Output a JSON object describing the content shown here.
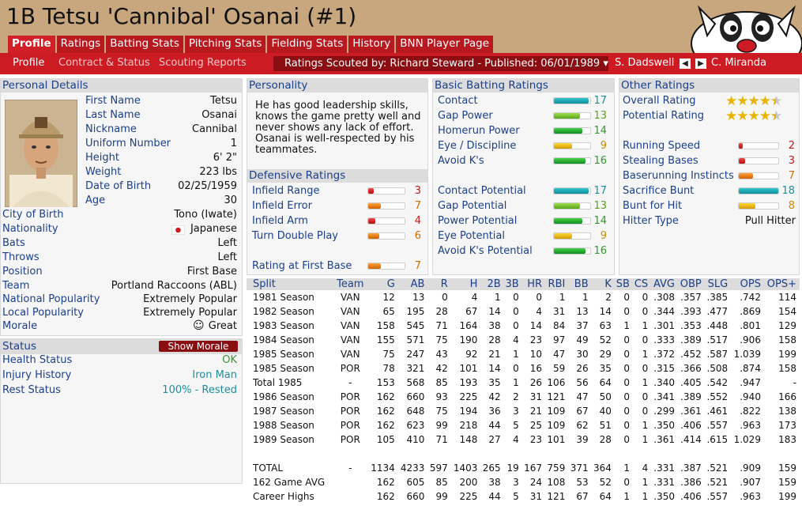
{
  "page_title": "1B Tetsu 'Cannibal' Osanai (#1)",
  "tabs": [
    {
      "label": "Profile",
      "active": true
    },
    {
      "label": "Ratings"
    },
    {
      "label": "Batting Stats"
    },
    {
      "label": "Pitching Stats"
    },
    {
      "label": "Fielding Stats"
    },
    {
      "label": "History"
    },
    {
      "label": "BNN Player Page"
    }
  ],
  "subtabs": [
    {
      "label": "Profile",
      "active": true
    },
    {
      "label": "Contract & Status"
    },
    {
      "label": "Scouting Reports"
    }
  ],
  "scout_selector": "Ratings Scouted by: Richard Steward - Published: 06/01/1989 ▾",
  "nav_prev": "S. Dadswell",
  "nav_next": "C. Miranda",
  "personal": {
    "header": "Personal Details",
    "first_name_label": "First Name",
    "first_name": "Tetsu",
    "last_name_label": "Last Name",
    "last_name": "Osanai",
    "nickname_label": "Nickname",
    "nickname": "Cannibal",
    "uniform_label": "Uniform Number",
    "uniform": "1",
    "height_label": "Height",
    "height": "6' 2\"",
    "weight_label": "Weight",
    "weight": "223 lbs",
    "dob_label": "Date of Birth",
    "dob": "02/25/1959",
    "age_label": "Age",
    "age": "30",
    "city_label": "City of Birth",
    "city": "Tono (Iwate)",
    "nationality_label": "Nationality",
    "nationality": "Japanese",
    "bats_label": "Bats",
    "bats": "Left",
    "throws_label": "Throws",
    "throws": "Left",
    "position_label": "Position",
    "position": "First Base",
    "team_label": "Team",
    "team": "Portland Raccoons (ABL)",
    "natpop_label": "National Popularity",
    "natpop": "Extremely Popular",
    "locpop_label": "Local Popularity",
    "locpop": "Extremely Popular",
    "morale_label": "Morale",
    "morale": "Great"
  },
  "status": {
    "header": "Status",
    "show_morale": "Show Morale",
    "health_label": "Health Status",
    "health": "OK",
    "injury_label": "Injury History",
    "injury": "Iron Man",
    "rest_label": "Rest Status",
    "rest": "100% - Rested"
  },
  "personality": {
    "header": "Personality",
    "text": "He has good leadership skills, knows the game pretty well and never shows any lack of effort. Osanai is well-respected by his teammates."
  },
  "defensive": {
    "header": "Defensive Ratings",
    "items": [
      {
        "label": "Infield Range",
        "value": "3",
        "level": 0.15,
        "color": "red"
      },
      {
        "label": "Infield Error",
        "value": "7",
        "level": 0.35,
        "color": "orange"
      },
      {
        "label": "Infield Arm",
        "value": "4",
        "level": 0.2,
        "color": "red"
      },
      {
        "label": "Turn Double Play",
        "value": "6",
        "level": 0.3,
        "color": "orange"
      }
    ],
    "first_base": {
      "label": "Rating at First Base",
      "value": "7",
      "level": 0.35,
      "color": "orange"
    }
  },
  "batting": {
    "header": "Basic Batting Ratings",
    "items": [
      {
        "label": "Contact",
        "value": "17",
        "level": 0.95,
        "color": "teal"
      },
      {
        "label": "Gap Power",
        "value": "13",
        "level": 0.72,
        "color": "lgreen"
      },
      {
        "label": "Homerun Power",
        "value": "14",
        "level": 0.78,
        "color": "green"
      },
      {
        "label": "Eye / Discipline",
        "value": "9",
        "level": 0.5,
        "color": "yellow"
      },
      {
        "label": "Avoid K's",
        "value": "16",
        "level": 0.88,
        "color": "green"
      }
    ],
    "potential": [
      {
        "label": "Contact Potential",
        "value": "17",
        "level": 0.95,
        "color": "teal"
      },
      {
        "label": "Gap Potential",
        "value": "13",
        "level": 0.72,
        "color": "lgreen"
      },
      {
        "label": "Power Potential",
        "value": "14",
        "level": 0.78,
        "color": "green"
      },
      {
        "label": "Eye Potential",
        "value": "9",
        "level": 0.5,
        "color": "yellow"
      },
      {
        "label": "Avoid K's Potential",
        "value": "16",
        "level": 0.88,
        "color": "green"
      }
    ]
  },
  "other": {
    "header": "Other Ratings",
    "overall_label": "Overall Rating",
    "overall_stars": 4.5,
    "potential_label": "Potential Rating",
    "potential_stars": 4.5,
    "items": [
      {
        "label": "Running Speed",
        "value": "2",
        "level": 0.1,
        "color": "red"
      },
      {
        "label": "Stealing Bases",
        "value": "3",
        "level": 0.15,
        "color": "red"
      },
      {
        "label": "Baserunning Instincts",
        "value": "7",
        "level": 0.35,
        "color": "orange"
      },
      {
        "label": "Sacrifice Bunt",
        "value": "18",
        "level": 1.0,
        "color": "teal"
      },
      {
        "label": "Bunt for Hit",
        "value": "8",
        "level": 0.42,
        "color": "yellow"
      }
    ],
    "hitter_label": "Hitter Type",
    "hitter": "Pull Hitter"
  },
  "stats": {
    "columns": [
      "Split",
      "Team",
      "G",
      "AB",
      "R",
      "H",
      "2B",
      "3B",
      "HR",
      "RBI",
      "BB",
      "K",
      "SB",
      "CS",
      "AVG",
      "OBP",
      "SLG",
      "OPS",
      "OPS+"
    ],
    "rows": [
      [
        "1981 Season",
        "VAN",
        "12",
        "13",
        "0",
        "4",
        "1",
        "0",
        "0",
        "1",
        "1",
        "2",
        "0",
        "0",
        ".308",
        ".357",
        ".385",
        ".742",
        "114"
      ],
      [
        "1982 Season",
        "VAN",
        "65",
        "195",
        "28",
        "67",
        "14",
        "0",
        "4",
        "31",
        "13",
        "14",
        "0",
        "0",
        ".344",
        ".393",
        ".477",
        ".869",
        "154"
      ],
      [
        "1983 Season",
        "VAN",
        "158",
        "545",
        "71",
        "164",
        "38",
        "0",
        "14",
        "84",
        "37",
        "63",
        "1",
        "1",
        ".301",
        ".353",
        ".448",
        ".801",
        "129"
      ],
      [
        "1984 Season",
        "VAN",
        "155",
        "571",
        "75",
        "190",
        "28",
        "4",
        "23",
        "97",
        "49",
        "52",
        "0",
        "0",
        ".333",
        ".389",
        ".517",
        ".906",
        "158"
      ],
      [
        "1985 Season",
        "VAN",
        "75",
        "247",
        "43",
        "92",
        "21",
        "1",
        "10",
        "47",
        "30",
        "29",
        "0",
        "1",
        ".372",
        ".452",
        ".587",
        "1.039",
        "199"
      ],
      [
        "1985 Season",
        "POR",
        "78",
        "321",
        "42",
        "101",
        "14",
        "0",
        "16",
        "59",
        "26",
        "35",
        "0",
        "0",
        ".315",
        ".366",
        ".508",
        ".874",
        "158"
      ],
      [
        "Total 1985",
        "-",
        "153",
        "568",
        "85",
        "193",
        "35",
        "1",
        "26",
        "106",
        "56",
        "64",
        "0",
        "1",
        ".340",
        ".405",
        ".542",
        ".947",
        "-"
      ],
      [
        "1986 Season",
        "POR",
        "162",
        "660",
        "93",
        "225",
        "42",
        "2",
        "31",
        "121",
        "47",
        "50",
        "0",
        "0",
        ".341",
        ".389",
        ".552",
        ".940",
        "166"
      ],
      [
        "1987 Season",
        "POR",
        "162",
        "648",
        "75",
        "194",
        "36",
        "3",
        "21",
        "109",
        "67",
        "40",
        "0",
        "0",
        ".299",
        ".361",
        ".461",
        ".822",
        "138"
      ],
      [
        "1988 Season",
        "POR",
        "162",
        "623",
        "99",
        "218",
        "44",
        "5",
        "25",
        "109",
        "62",
        "51",
        "0",
        "1",
        ".350",
        ".406",
        ".557",
        ".963",
        "173"
      ],
      [
        "1989 Season",
        "POR",
        "105",
        "410",
        "71",
        "148",
        "27",
        "4",
        "23",
        "101",
        "39",
        "28",
        "0",
        "1",
        ".361",
        ".414",
        ".615",
        "1.029",
        "183"
      ],
      [
        "",
        "",
        "",
        "",
        "",
        "",
        "",
        "",
        "",
        "",
        "",
        "",
        "",
        "",
        "",
        "",
        "",
        "",
        ""
      ],
      [
        "TOTAL",
        "-",
        "1134",
        "4233",
        "597",
        "1403",
        "265",
        "19",
        "167",
        "759",
        "371",
        "364",
        "1",
        "4",
        ".331",
        ".387",
        ".521",
        ".909",
        "159"
      ],
      [
        "162 Game AVG",
        "",
        "162",
        "605",
        "85",
        "200",
        "38",
        "3",
        "24",
        "108",
        "53",
        "52",
        "0",
        "1",
        ".331",
        ".386",
        ".521",
        ".907",
        "159"
      ],
      [
        "Career Highs",
        "",
        "162",
        "660",
        "99",
        "225",
        "44",
        "5",
        "31",
        "121",
        "67",
        "64",
        "1",
        "1",
        ".350",
        ".406",
        ".557",
        ".963",
        "199"
      ]
    ]
  }
}
